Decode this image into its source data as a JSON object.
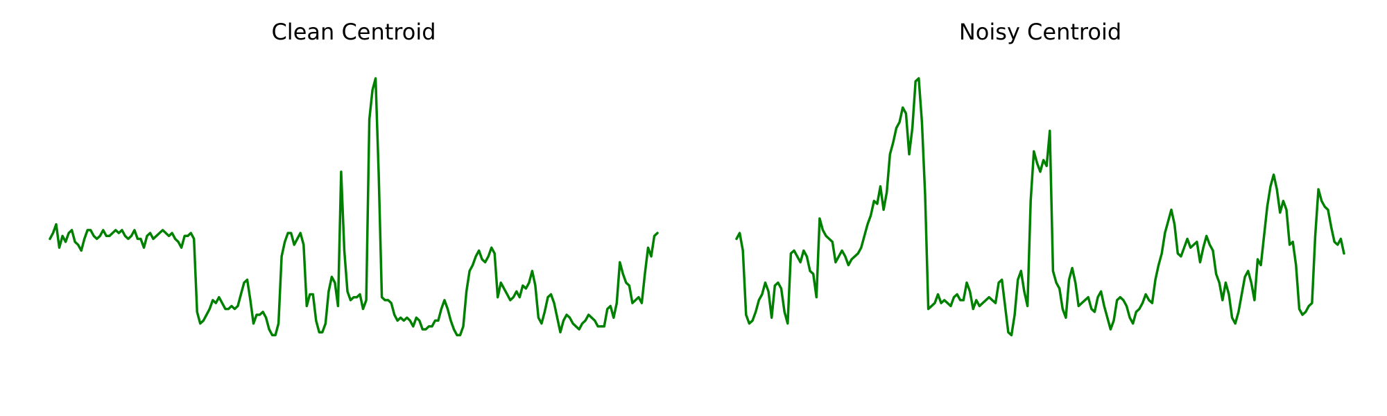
{
  "chart_data": [
    {
      "type": "line",
      "title": "Clean Centroid",
      "xlabel": "",
      "ylabel": "",
      "axis_visible": false,
      "grid": false,
      "color": "#008000",
      "x_count": 193,
      "ylim": [
        -0.05,
        1.05
      ],
      "values": [
        0.45,
        0.47,
        0.5,
        0.42,
        0.46,
        0.44,
        0.47,
        0.48,
        0.44,
        0.43,
        0.41,
        0.45,
        0.48,
        0.48,
        0.46,
        0.45,
        0.46,
        0.48,
        0.46,
        0.46,
        0.47,
        0.48,
        0.47,
        0.48,
        0.46,
        0.45,
        0.46,
        0.48,
        0.45,
        0.45,
        0.42,
        0.46,
        0.47,
        0.45,
        0.46,
        0.47,
        0.48,
        0.47,
        0.46,
        0.47,
        0.45,
        0.44,
        0.42,
        0.46,
        0.46,
        0.47,
        0.45,
        0.2,
        0.16,
        0.17,
        0.19,
        0.21,
        0.24,
        0.23,
        0.25,
        0.23,
        0.21,
        0.21,
        0.22,
        0.21,
        0.22,
        0.26,
        0.3,
        0.31,
        0.24,
        0.16,
        0.19,
        0.19,
        0.2,
        0.18,
        0.14,
        0.12,
        0.12,
        0.16,
        0.39,
        0.44,
        0.47,
        0.47,
        0.43,
        0.45,
        0.47,
        0.43,
        0.22,
        0.26,
        0.26,
        0.17,
        0.13,
        0.13,
        0.16,
        0.27,
        0.32,
        0.3,
        0.22,
        0.68,
        0.41,
        0.27,
        0.24,
        0.25,
        0.25,
        0.26,
        0.21,
        0.24,
        0.86,
        0.96,
        1.0,
        0.67,
        0.25,
        0.24,
        0.24,
        0.23,
        0.19,
        0.17,
        0.18,
        0.17,
        0.18,
        0.17,
        0.15,
        0.18,
        0.17,
        0.14,
        0.14,
        0.15,
        0.15,
        0.17,
        0.17,
        0.21,
        0.24,
        0.21,
        0.17,
        0.14,
        0.12,
        0.12,
        0.15,
        0.27,
        0.34,
        0.36,
        0.39,
        0.41,
        0.38,
        0.37,
        0.39,
        0.42,
        0.4,
        0.25,
        0.3,
        0.28,
        0.26,
        0.24,
        0.25,
        0.27,
        0.25,
        0.29,
        0.28,
        0.3,
        0.34,
        0.29,
        0.18,
        0.16,
        0.2,
        0.25,
        0.26,
        0.23,
        0.18,
        0.13,
        0.17,
        0.19,
        0.18,
        0.16,
        0.15,
        0.14,
        0.16,
        0.17,
        0.19,
        0.18,
        0.17,
        0.15,
        0.15,
        0.15,
        0.21,
        0.22,
        0.18,
        0.23,
        0.37,
        0.33,
        0.3,
        0.29,
        0.23,
        0.24,
        0.25,
        0.23,
        0.33,
        0.42,
        0.39,
        0.46,
        0.47
      ]
    },
    {
      "type": "line",
      "title": "Noisy Centroid",
      "xlabel": "",
      "ylabel": "",
      "axis_visible": false,
      "grid": false,
      "color": "#008000",
      "x_count": 193,
      "ylim": [
        -0.05,
        1.05
      ],
      "values": [
        0.45,
        0.47,
        0.41,
        0.19,
        0.16,
        0.17,
        0.2,
        0.24,
        0.26,
        0.3,
        0.27,
        0.18,
        0.29,
        0.3,
        0.28,
        0.2,
        0.16,
        0.4,
        0.41,
        0.39,
        0.37,
        0.41,
        0.39,
        0.34,
        0.33,
        0.25,
        0.52,
        0.48,
        0.46,
        0.45,
        0.44,
        0.37,
        0.39,
        0.41,
        0.39,
        0.36,
        0.38,
        0.39,
        0.4,
        0.42,
        0.46,
        0.5,
        0.53,
        0.58,
        0.57,
        0.63,
        0.55,
        0.61,
        0.74,
        0.78,
        0.83,
        0.85,
        0.9,
        0.88,
        0.74,
        0.83,
        0.99,
        1.0,
        0.85,
        0.6,
        0.21,
        0.22,
        0.23,
        0.26,
        0.23,
        0.24,
        0.23,
        0.22,
        0.25,
        0.26,
        0.24,
        0.24,
        0.3,
        0.27,
        0.21,
        0.24,
        0.22,
        0.23,
        0.24,
        0.25,
        0.24,
        0.23,
        0.3,
        0.31,
        0.22,
        0.13,
        0.12,
        0.19,
        0.31,
        0.34,
        0.27,
        0.22,
        0.58,
        0.75,
        0.71,
        0.68,
        0.72,
        0.7,
        0.82,
        0.34,
        0.3,
        0.28,
        0.21,
        0.18,
        0.31,
        0.35,
        0.3,
        0.22,
        0.23,
        0.24,
        0.25,
        0.21,
        0.2,
        0.25,
        0.27,
        0.22,
        0.18,
        0.14,
        0.17,
        0.24,
        0.25,
        0.24,
        0.22,
        0.18,
        0.16,
        0.2,
        0.21,
        0.23,
        0.26,
        0.24,
        0.23,
        0.31,
        0.36,
        0.4,
        0.47,
        0.51,
        0.55,
        0.5,
        0.4,
        0.39,
        0.42,
        0.45,
        0.42,
        0.43,
        0.44,
        0.37,
        0.42,
        0.46,
        0.43,
        0.41,
        0.33,
        0.3,
        0.24,
        0.3,
        0.26,
        0.18,
        0.16,
        0.2,
        0.26,
        0.32,
        0.34,
        0.3,
        0.24,
        0.38,
        0.36,
        0.46,
        0.56,
        0.63,
        0.67,
        0.62,
        0.54,
        0.58,
        0.55,
        0.43,
        0.44,
        0.36,
        0.21,
        0.19,
        0.2,
        0.22,
        0.23,
        0.46,
        0.62,
        0.58,
        0.56,
        0.55,
        0.49,
        0.44,
        0.43,
        0.45,
        0.4
      ]
    }
  ],
  "colors": {
    "line": "#008000",
    "background": "#ffffff",
    "title": "#000000"
  }
}
